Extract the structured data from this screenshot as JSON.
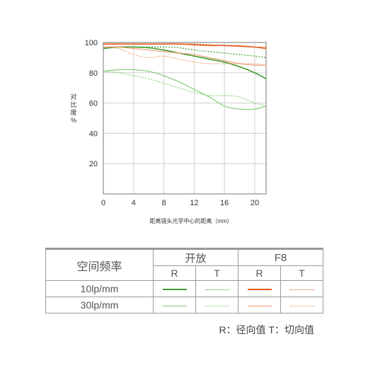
{
  "chart_data": {
    "type": "line",
    "xlabel": "距离镜头光学中心的距离（mm）",
    "ylabel": "对比度%",
    "xlim": [
      0,
      21.5
    ],
    "ylim": [
      0,
      100
    ],
    "xticks": [
      "0",
      "4",
      "8",
      "12",
      "16",
      "20"
    ],
    "yticks": [
      "20",
      "40",
      "60",
      "80",
      "100"
    ],
    "grid": true,
    "series": [
      {
        "name": "开放 R 10lp/mm",
        "color": "#3b9c2d",
        "style": "solid",
        "width": 1.6,
        "x": [
          0,
          2,
          4,
          6,
          8,
          10,
          12,
          14,
          16,
          18,
          20,
          21.5
        ],
        "y": [
          96,
          97,
          97,
          96.5,
          95,
          93,
          91,
          89,
          87,
          84,
          80,
          76
        ]
      },
      {
        "name": "开放 T 10lp/mm",
        "color": "#3b9c2d",
        "style": "dotted",
        "width": 1.2,
        "x": [
          0,
          2,
          4,
          6,
          8,
          10,
          12,
          14,
          16,
          18,
          20,
          21.5
        ],
        "y": [
          97,
          97,
          97,
          97,
          97,
          96.5,
          95,
          94,
          93,
          92,
          91,
          90
        ]
      },
      {
        "name": "开放 R 30lp/mm",
        "color": "#7cc96d",
        "style": "solid",
        "width": 1.1,
        "x": [
          0,
          2,
          4,
          6,
          8,
          10,
          12,
          14,
          16,
          18,
          20,
          21.5
        ],
        "y": [
          81,
          82,
          82,
          81,
          78,
          74,
          69,
          64,
          58,
          56,
          56,
          58
        ]
      },
      {
        "name": "开放 T 30lp/mm",
        "color": "#7cc96d",
        "style": "dotted",
        "width": 1.1,
        "x": [
          0,
          2,
          4,
          6,
          8,
          10,
          12,
          14,
          16,
          18,
          20,
          21.5
        ],
        "y": [
          81,
          80,
          78,
          76,
          73,
          70,
          67,
          65,
          65,
          64,
          60,
          58
        ]
      },
      {
        "name": "F8 R 10lp/mm",
        "color": "#e35b1c",
        "style": "solid",
        "width": 1.6,
        "x": [
          0,
          2,
          4,
          6,
          8,
          10,
          12,
          14,
          16,
          18,
          20,
          21.5
        ],
        "y": [
          99,
          99,
          99,
          99,
          99,
          99,
          98.5,
          98,
          98,
          97.5,
          97,
          96
        ]
      },
      {
        "name": "F8 T 10lp/mm",
        "color": "#e35b1c",
        "style": "dotted",
        "width": 1.2,
        "x": [
          0,
          2,
          4,
          6,
          8,
          10,
          12,
          14,
          16,
          18,
          20,
          21.5
        ],
        "y": [
          99,
          99,
          99,
          99,
          99,
          99,
          99,
          98.5,
          98,
          98,
          97,
          97
        ]
      },
      {
        "name": "F8 R 30lp/mm",
        "color": "#f0986a",
        "style": "solid",
        "width": 1.1,
        "x": [
          0,
          2,
          4,
          6,
          8,
          10,
          12,
          14,
          16,
          18,
          20,
          21.5
        ],
        "y": [
          97,
          97,
          96,
          95,
          94,
          93,
          92,
          90,
          88,
          86,
          85,
          85
        ]
      },
      {
        "name": "F8 T 30lp/mm",
        "color": "#f0986a",
        "style": "dotted",
        "width": 1.1,
        "x": [
          0,
          2,
          4,
          6,
          8,
          10,
          12,
          14,
          16,
          18,
          20,
          21.5
        ],
        "y": [
          97,
          96,
          92,
          90,
          91,
          89,
          87,
          86,
          86,
          86,
          86,
          85
        ]
      }
    ]
  },
  "legend": {
    "header_freq": "空间频率",
    "group_open": "开放",
    "group_f8": "F8",
    "col_r": "R",
    "col_t": "T",
    "row_10": "10lp/mm",
    "row_30": "30lp/mm"
  },
  "note": "R：径向值    T：切向值"
}
